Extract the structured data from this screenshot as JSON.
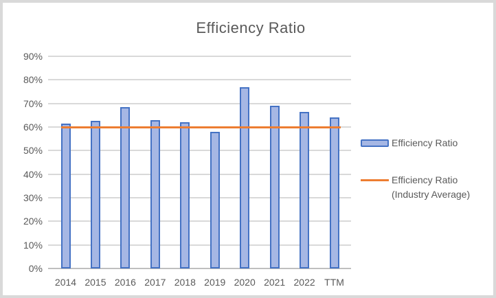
{
  "chart_data": {
    "type": "bar",
    "title": "Efficiency Ratio",
    "categories": [
      "2014",
      "2015",
      "2016",
      "2017",
      "2018",
      "2019",
      "2020",
      "2021",
      "2022",
      "TTM"
    ],
    "series": [
      {
        "name": "Efficiency Ratio",
        "type": "bar",
        "values": [
          61.5,
          62.5,
          68.5,
          63,
          62,
          58,
          77,
          69,
          66.5,
          64
        ]
      },
      {
        "name": "Efficiency Ratio (Industry Average)",
        "type": "line",
        "value": 60,
        "values": [
          60,
          60,
          60,
          60,
          60,
          60,
          60,
          60,
          60,
          60
        ]
      }
    ],
    "xlabel": "",
    "ylabel": "",
    "y_axis": {
      "min": 0,
      "max": 90,
      "step": 10,
      "tick_labels": [
        "0%",
        "10%",
        "20%",
        "30%",
        "40%",
        "50%",
        "60%",
        "70%",
        "80%",
        "90%"
      ]
    },
    "ylim": [
      0,
      95
    ],
    "grid": true,
    "legend": {
      "position": "right",
      "items": [
        {
          "label": "Efficiency Ratio",
          "swatch": "bar-swatch"
        },
        {
          "label": "Efficiency Ratio (Industry Average)",
          "label_line1": "Efficiency Ratio",
          "label_line2": "(Industry Average)",
          "swatch": "line-swatch"
        }
      ]
    },
    "colors": {
      "bar_fill": "#a6b7e4",
      "bar_border": "#4472c4",
      "industry_line": "#ed7d31",
      "gridline": "#d9d9d9",
      "axis_line": "#bfbfbf",
      "text": "#595959",
      "frame_border": "#d9d9d9"
    }
  }
}
